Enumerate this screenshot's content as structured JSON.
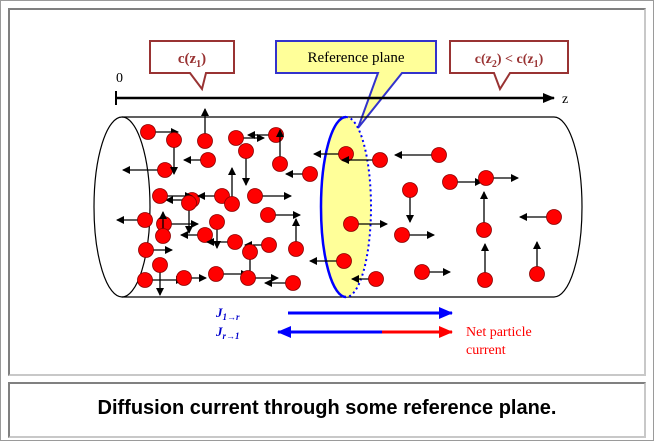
{
  "diagram": {
    "callout_left": {
      "text": "c(z",
      "sub": "1",
      "tail": ")"
    },
    "callout_middle": {
      "text": "Reference plane"
    },
    "callout_right": {
      "a": "c(z",
      "a_sub": "2",
      "mid": ") < c(z",
      "b_sub": "1",
      "tail": ")"
    },
    "axis": {
      "origin_label": "0",
      "axis_label": "z"
    },
    "flux_left_to_right": {
      "base": "J",
      "sub": "1→r"
    },
    "flux_right_to_left": {
      "base": "J",
      "sub": "r→1"
    },
    "net_label_line1": "Net particle",
    "net_label_line2": "current",
    "colors": {
      "particle": "#ff0000",
      "blue_arrow": "#0000ff",
      "red_arrow": "#ff0000",
      "plane_fill": "#ffff99",
      "callout_red_border": "#993333",
      "callout_blue_border": "#3333cc"
    }
  },
  "caption": {
    "text": "Diffusion current through some reference plane."
  }
}
